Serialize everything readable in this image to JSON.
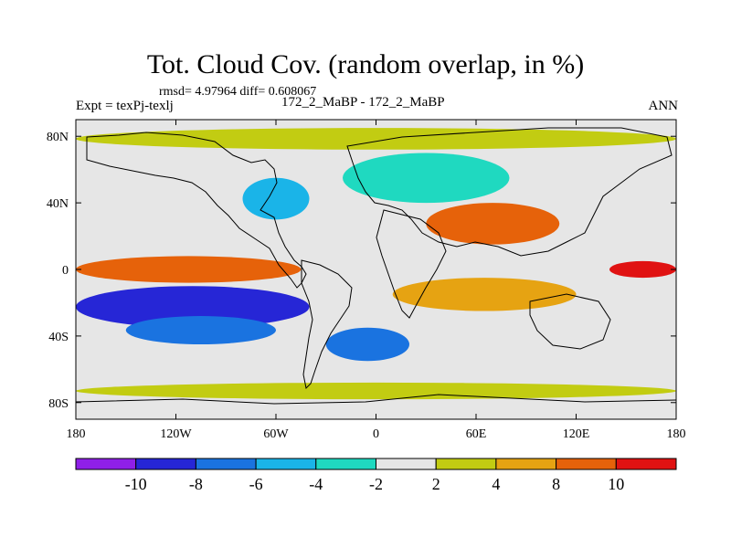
{
  "title": "Tot. Cloud Cov. (random overlap, in %)",
  "stats_line": "rmsd= 4.97964 diff= 0.608067",
  "left_label": "Expt = texPj-texlj",
  "center_label": "172_2_MaBP - 172_2_MaBP",
  "right_label": "ANN",
  "colors": {
    "contours": [
      "#8f1fe8",
      "#2626d6",
      "#1a73e0",
      "#1ab4e8",
      "#1fd9c0",
      "#e6e6e6",
      "#c2cc12",
      "#e6a312",
      "#e6620a",
      "#e01212"
    ]
  },
  "chart_data": {
    "type": "heatmap",
    "title": "Tot. Cloud Cov. (random overlap, in %)",
    "projection": "cylindrical equidistant",
    "xlim": [
      -180,
      180
    ],
    "ylim": [
      -90,
      90
    ],
    "x_ticks": [
      -180,
      -120,
      -60,
      0,
      60,
      120,
      180
    ],
    "x_tick_labels": [
      "180",
      "120W",
      "60W",
      "0",
      "60E",
      "120E",
      "180"
    ],
    "y_ticks": [
      80,
      40,
      0,
      -40,
      -80
    ],
    "y_tick_labels": [
      "80N",
      "40N",
      "0",
      "40S",
      "80S"
    ],
    "colorbar": {
      "boundaries": [
        -12,
        -10,
        -8,
        -6,
        -4,
        -2,
        2,
        4,
        8,
        10,
        12
      ],
      "labels": [
        "-10",
        "-8",
        "-6",
        "-4",
        "-2",
        "2",
        "4",
        "8",
        "10"
      ],
      "label_values": [
        -10,
        -8,
        -6,
        -4,
        -2,
        2,
        4,
        8,
        10
      ]
    },
    "regions": [
      {
        "name": "tropical-east-pacific-positive",
        "lon": [
          -180,
          -45
        ],
        "lat": [
          -8,
          8
        ],
        "value": 9
      },
      {
        "name": "south-pacific-negative-band",
        "lon": [
          -180,
          -40
        ],
        "lat": [
          -35,
          -10
        ],
        "value": -10
      },
      {
        "name": "south-pacific-dipole-edge",
        "lon": [
          -150,
          -60
        ],
        "lat": [
          -45,
          -28
        ],
        "value": -7
      },
      {
        "name": "north-atlantic-negative",
        "lon": [
          -80,
          -40
        ],
        "lat": [
          30,
          55
        ],
        "value": -6
      },
      {
        "name": "eurasia-negative",
        "lon": [
          -20,
          80
        ],
        "lat": [
          40,
          70
        ],
        "value": -4
      },
      {
        "name": "central-asia-positive",
        "lon": [
          30,
          110
        ],
        "lat": [
          15,
          40
        ],
        "value": 9
      },
      {
        "name": "indian-ocean-positive",
        "lon": [
          10,
          120
        ],
        "lat": [
          -25,
          -5
        ],
        "value": 6
      },
      {
        "name": "southern-ocean-atlantic-negative",
        "lon": [
          -30,
          20
        ],
        "lat": [
          -55,
          -35
        ],
        "value": -7
      },
      {
        "name": "west-pacific-positive",
        "lon": [
          140,
          180
        ],
        "lat": [
          -5,
          5
        ],
        "value": 11
      },
      {
        "name": "southern-high-latitudes-positive",
        "lon": [
          -180,
          180
        ],
        "lat": [
          -78,
          -68
        ],
        "value": 3
      },
      {
        "name": "northern-high-latitudes-positive",
        "lon": [
          -180,
          180
        ],
        "lat": [
          72,
          85
        ],
        "value": 3
      }
    ]
  }
}
